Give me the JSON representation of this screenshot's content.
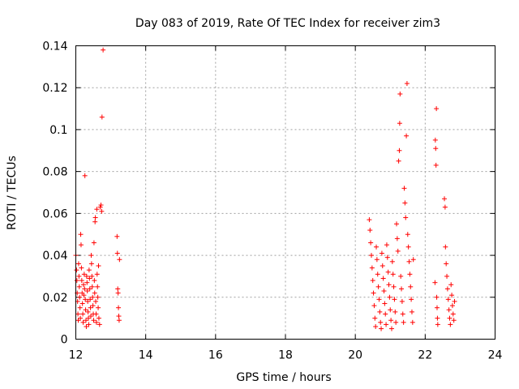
{
  "chart_data": {
    "type": "scatter",
    "title": "Day 083 of 2019, Rate Of TEC Index for receiver zim3",
    "xlabel": "GPS time / hours",
    "ylabel": "ROTI / TECUs",
    "xlim": [
      12,
      24
    ],
    "ylim": [
      0,
      0.14
    ],
    "x_ticks": [
      12,
      14,
      16,
      18,
      20,
      22,
      24
    ],
    "x_tick_labels": [
      "12",
      "14",
      "16",
      "18",
      "20",
      "22",
      "24"
    ],
    "y_ticks": [
      0,
      0.02,
      0.04,
      0.06,
      0.08,
      0.1,
      0.12,
      0.14
    ],
    "y_tick_labels": [
      "0",
      "0.02",
      "0.04",
      "0.06",
      "0.08",
      "0.1",
      "0.12",
      "0.14"
    ],
    "grid": true,
    "marker": "plus",
    "color": "#ff0000",
    "series": [
      {
        "name": "ROTI",
        "points": [
          [
            12.0,
            0.04
          ],
          [
            12.02,
            0.033
          ],
          [
            12.03,
            0.028
          ],
          [
            12.04,
            0.022
          ],
          [
            12.05,
            0.018
          ],
          [
            12.06,
            0.012
          ],
          [
            12.07,
            0.009
          ],
          [
            12.08,
            0.036
          ],
          [
            12.09,
            0.03
          ],
          [
            12.1,
            0.025
          ],
          [
            12.11,
            0.02
          ],
          [
            12.12,
            0.015
          ],
          [
            12.13,
            0.01
          ],
          [
            12.14,
            0.05
          ],
          [
            12.15,
            0.045
          ],
          [
            12.16,
            0.034
          ],
          [
            12.17,
            0.028
          ],
          [
            12.18,
            0.022
          ],
          [
            12.19,
            0.017
          ],
          [
            12.2,
            0.012
          ],
          [
            12.21,
            0.008
          ],
          [
            12.22,
            0.026
          ],
          [
            12.23,
            0.021
          ],
          [
            12.24,
            0.031
          ],
          [
            12.25,
            0.024
          ],
          [
            12.26,
            0.078
          ],
          [
            12.27,
            0.019
          ],
          [
            12.28,
            0.014
          ],
          [
            12.29,
            0.009
          ],
          [
            12.3,
            0.006
          ],
          [
            12.31,
            0.03
          ],
          [
            12.32,
            0.027
          ],
          [
            12.33,
            0.023
          ],
          [
            12.34,
            0.018
          ],
          [
            12.35,
            0.013
          ],
          [
            12.36,
            0.01
          ],
          [
            12.37,
            0.007
          ],
          [
            12.38,
            0.033
          ],
          [
            12.39,
            0.029
          ],
          [
            12.4,
            0.024
          ],
          [
            12.41,
            0.019
          ],
          [
            12.42,
            0.015
          ],
          [
            12.43,
            0.011
          ],
          [
            12.44,
            0.04
          ],
          [
            12.45,
            0.036
          ],
          [
            12.46,
            0.03
          ],
          [
            12.47,
            0.025
          ],
          [
            12.48,
            0.02
          ],
          [
            12.49,
            0.016
          ],
          [
            12.5,
            0.012
          ],
          [
            12.51,
            0.009
          ],
          [
            12.52,
            0.046
          ],
          [
            12.53,
            0.028
          ],
          [
            12.54,
            0.022
          ],
          [
            12.55,
            0.056
          ],
          [
            12.56,
            0.058
          ],
          [
            12.57,
            0.018
          ],
          [
            12.58,
            0.012
          ],
          [
            12.59,
            0.008
          ],
          [
            12.6,
            0.062
          ],
          [
            12.61,
            0.031
          ],
          [
            12.62,
            0.025
          ],
          [
            12.63,
            0.02
          ],
          [
            12.64,
            0.015
          ],
          [
            12.65,
            0.035
          ],
          [
            12.66,
            0.01
          ],
          [
            12.68,
            0.007
          ],
          [
            12.7,
            0.063
          ],
          [
            12.72,
            0.064
          ],
          [
            12.74,
            0.061
          ],
          [
            12.75,
            0.106
          ],
          [
            12.78,
            0.138
          ],
          [
            13.18,
            0.049
          ],
          [
            13.19,
            0.041
          ],
          [
            13.2,
            0.024
          ],
          [
            13.21,
            0.022
          ],
          [
            13.22,
            0.015
          ],
          [
            13.23,
            0.011
          ],
          [
            13.24,
            0.009
          ],
          [
            13.25,
            0.038
          ],
          [
            20.4,
            0.057
          ],
          [
            20.42,
            0.052
          ],
          [
            20.44,
            0.046
          ],
          [
            20.46,
            0.04
          ],
          [
            20.48,
            0.034
          ],
          [
            20.5,
            0.028
          ],
          [
            20.52,
            0.022
          ],
          [
            20.54,
            0.016
          ],
          [
            20.56,
            0.01
          ],
          [
            20.58,
            0.006
          ],
          [
            20.6,
            0.044
          ],
          [
            20.62,
            0.038
          ],
          [
            20.64,
            0.031
          ],
          [
            20.66,
            0.025
          ],
          [
            20.68,
            0.019
          ],
          [
            20.7,
            0.013
          ],
          [
            20.72,
            0.008
          ],
          [
            20.74,
            0.005
          ],
          [
            20.76,
            0.041
          ],
          [
            20.78,
            0.035
          ],
          [
            20.8,
            0.029
          ],
          [
            20.82,
            0.023
          ],
          [
            20.84,
            0.017
          ],
          [
            20.86,
            0.012
          ],
          [
            20.88,
            0.007
          ],
          [
            20.9,
            0.045
          ],
          [
            20.92,
            0.039
          ],
          [
            20.94,
            0.032
          ],
          [
            20.96,
            0.026
          ],
          [
            20.98,
            0.02
          ],
          [
            21.0,
            0.014
          ],
          [
            21.02,
            0.009
          ],
          [
            21.04,
            0.005
          ],
          [
            21.06,
            0.037
          ],
          [
            21.08,
            0.031
          ],
          [
            21.1,
            0.025
          ],
          [
            21.12,
            0.019
          ],
          [
            21.14,
            0.013
          ],
          [
            21.16,
            0.008
          ],
          [
            21.18,
            0.055
          ],
          [
            21.2,
            0.048
          ],
          [
            21.22,
            0.042
          ],
          [
            21.24,
            0.085
          ],
          [
            21.26,
            0.09
          ],
          [
            21.27,
            0.103
          ],
          [
            21.28,
            0.117
          ],
          [
            21.3,
            0.03
          ],
          [
            21.32,
            0.024
          ],
          [
            21.34,
            0.018
          ],
          [
            21.36,
            0.012
          ],
          [
            21.38,
            0.008
          ],
          [
            21.4,
            0.072
          ],
          [
            21.42,
            0.065
          ],
          [
            21.44,
            0.058
          ],
          [
            21.46,
            0.097
          ],
          [
            21.48,
            0.122
          ],
          [
            21.5,
            0.05
          ],
          [
            21.52,
            0.044
          ],
          [
            21.54,
            0.037
          ],
          [
            21.56,
            0.031
          ],
          [
            21.58,
            0.025
          ],
          [
            21.6,
            0.019
          ],
          [
            21.62,
            0.013
          ],
          [
            21.64,
            0.008
          ],
          [
            21.66,
            0.038
          ],
          [
            22.28,
            0.027
          ],
          [
            22.29,
            0.095
          ],
          [
            22.3,
            0.091
          ],
          [
            22.31,
            0.083
          ],
          [
            22.32,
            0.11
          ],
          [
            22.33,
            0.02
          ],
          [
            22.34,
            0.015
          ],
          [
            22.35,
            0.01
          ],
          [
            22.36,
            0.007
          ],
          [
            22.55,
            0.067
          ],
          [
            22.57,
            0.063
          ],
          [
            22.58,
            0.044
          ],
          [
            22.6,
            0.036
          ],
          [
            22.62,
            0.03
          ],
          [
            22.64,
            0.024
          ],
          [
            22.66,
            0.019
          ],
          [
            22.68,
            0.014
          ],
          [
            22.7,
            0.01
          ],
          [
            22.72,
            0.007
          ],
          [
            22.74,
            0.026
          ],
          [
            22.76,
            0.021
          ],
          [
            22.78,
            0.016
          ],
          [
            22.8,
            0.012
          ],
          [
            22.82,
            0.009
          ],
          [
            22.84,
            0.018
          ]
        ]
      }
    ]
  }
}
